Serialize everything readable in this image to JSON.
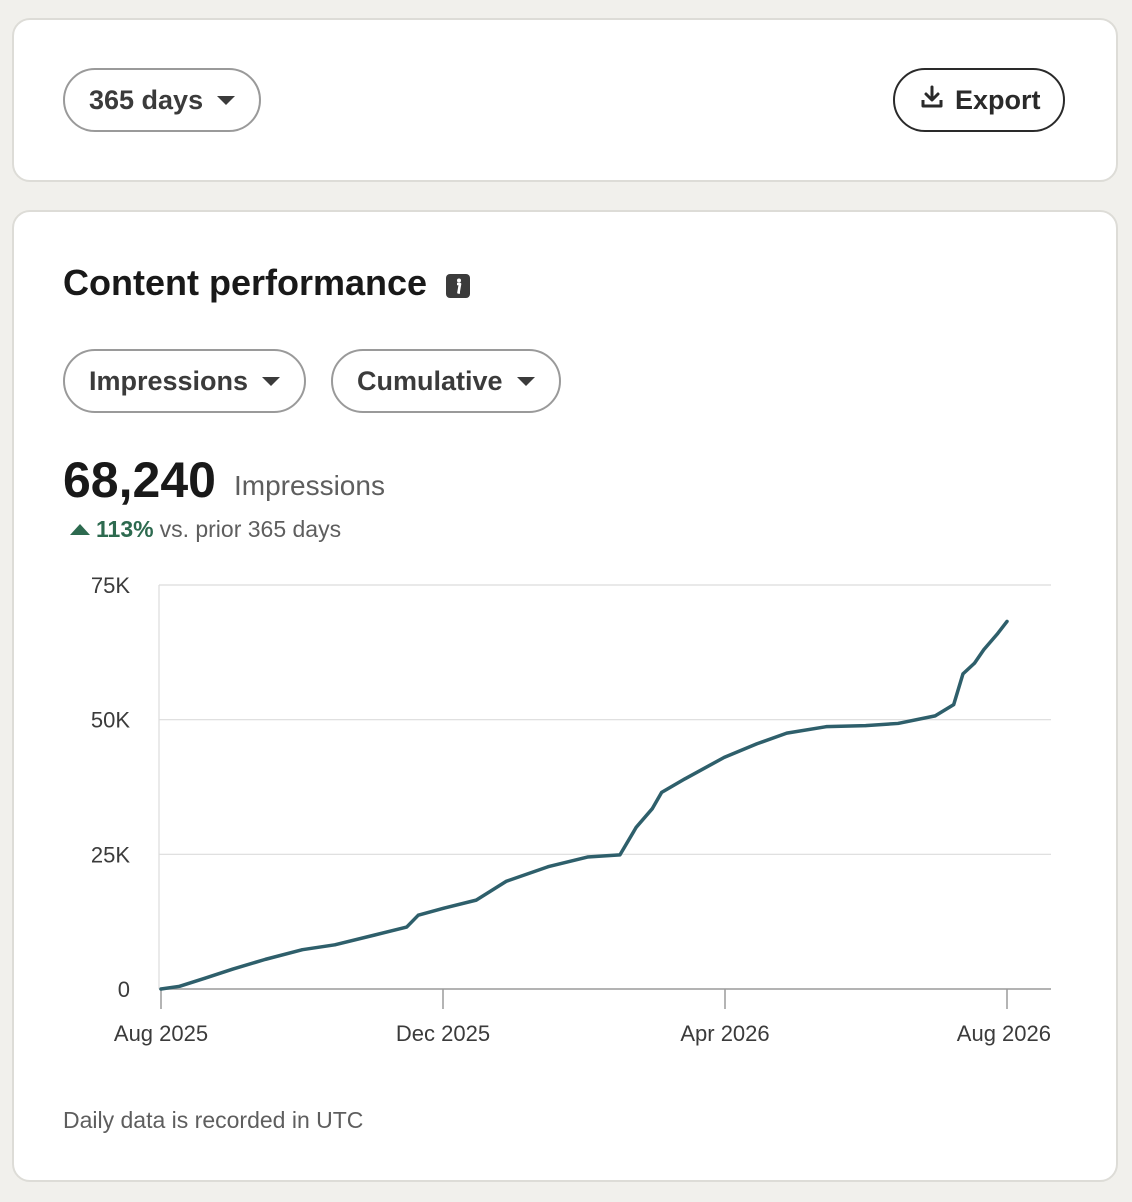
{
  "filters": {
    "range_label": "365 days",
    "export_label": "Export"
  },
  "section": {
    "title": "Content performance",
    "metric_label": "Impressions",
    "mode_label": "Cumulative"
  },
  "summary": {
    "total": "68,240",
    "total_label": "Impressions",
    "change_pct": "113%",
    "change_text": "vs. prior 365 days"
  },
  "footnote": "Daily data is recorded in UTC",
  "icons": {
    "range_caret": "chevron-down-icon",
    "export": "download-icon",
    "info": "info-icon",
    "change": "up-arrow-icon"
  },
  "colors": {
    "line": "#2e5f6b",
    "positive": "#2d6a4f"
  },
  "chart_data": {
    "type": "line",
    "x_ticks": [
      "Aug 2025",
      "Dec 2025",
      "Apr 2026",
      "Aug 2026"
    ],
    "y_ticks": [
      "0",
      "25K",
      "50K",
      "75K"
    ],
    "ylim": [
      0,
      75000
    ],
    "xlim": [
      "2025-08-01",
      "2026-08-01"
    ],
    "grid": "horizontal",
    "series": [
      {
        "values": [
          [
            "2025-08-01",
            0
          ],
          [
            "2025-08-09",
            500
          ],
          [
            "2025-08-20",
            2000
          ],
          [
            "2025-09-01",
            3700
          ],
          [
            "2025-09-15",
            5500
          ],
          [
            "2025-10-01",
            7300
          ],
          [
            "2025-10-15",
            8200
          ],
          [
            "2025-11-01",
            10000
          ],
          [
            "2025-11-15",
            11500
          ],
          [
            "2025-11-20",
            13700
          ],
          [
            "2025-12-01",
            15000
          ],
          [
            "2025-12-15",
            16500
          ],
          [
            "2025-12-28",
            20000
          ],
          [
            "2026-01-15",
            22700
          ],
          [
            "2026-02-01",
            24500
          ],
          [
            "2026-02-15",
            24900
          ],
          [
            "2026-02-22",
            30000
          ],
          [
            "2026-03-01",
            33500
          ],
          [
            "2026-03-05",
            36500
          ],
          [
            "2026-03-15",
            39000
          ],
          [
            "2026-04-01",
            43000
          ],
          [
            "2026-04-15",
            45500
          ],
          [
            "2026-04-28",
            47500
          ],
          [
            "2026-05-15",
            48700
          ],
          [
            "2026-06-01",
            48900
          ],
          [
            "2026-06-15",
            49300
          ],
          [
            "2026-07-01",
            50700
          ],
          [
            "2026-07-09",
            52800
          ],
          [
            "2026-07-13",
            58500
          ],
          [
            "2026-07-18",
            60500
          ],
          [
            "2026-07-22",
            63000
          ],
          [
            "2026-07-28",
            66000
          ],
          [
            "2026-08-01",
            68240
          ]
        ]
      }
    ]
  }
}
